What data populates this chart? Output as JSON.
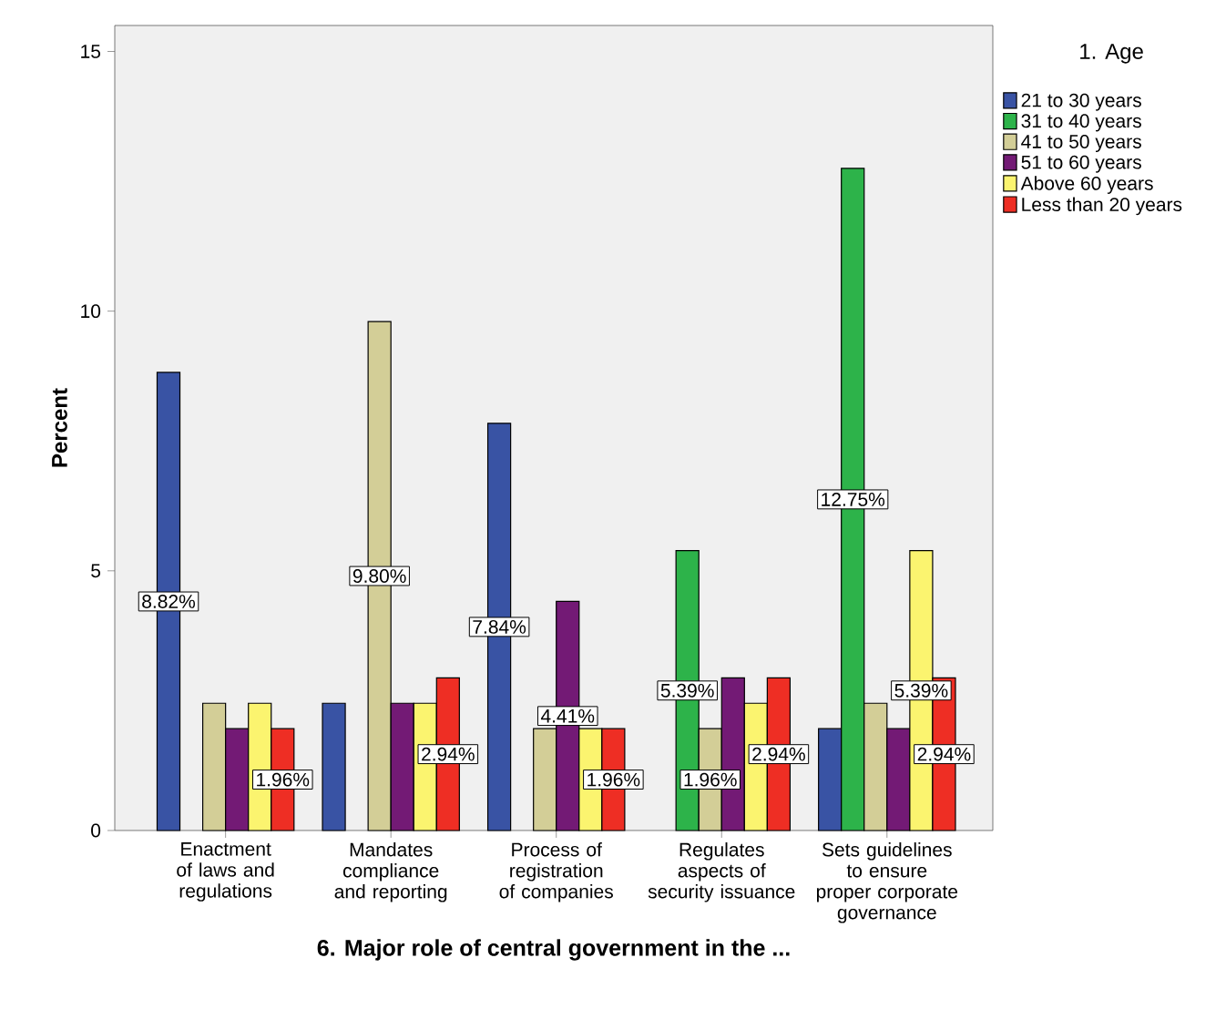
{
  "chart_data": {
    "type": "bar",
    "xlabel": "6. Major role of central government in the ...",
    "ylabel": "Percent",
    "legend_title": "1. Age",
    "categories": [
      "Enactment of laws and regulations",
      "Mandates compliance and reporting",
      "Process of registration of companies",
      "Regulates aspects of security issuance",
      "Sets guidelines to ensure proper corporate governance"
    ],
    "series": [
      {
        "name": "21 to 30 years",
        "color": "#3953a4",
        "values": [
          8.82,
          2.45,
          7.84,
          null,
          1.96
        ],
        "value_labels": [
          "8.82%",
          null,
          "7.84%",
          null,
          null
        ]
      },
      {
        "name": "31 to 40 years",
        "color": "#2db34a",
        "values": [
          null,
          null,
          null,
          5.39,
          12.75
        ],
        "value_labels": [
          null,
          null,
          null,
          "5.39%",
          "12.75%"
        ]
      },
      {
        "name": "41 to 50 years",
        "color": "#d3ce97",
        "values": [
          2.45,
          9.8,
          1.96,
          1.96,
          2.45
        ],
        "value_labels": [
          null,
          "9.80%",
          null,
          "1.96%",
          null
        ]
      },
      {
        "name": "51 to 60 years",
        "color": "#731a75",
        "values": [
          1.96,
          2.45,
          4.41,
          2.94,
          1.96
        ],
        "value_labels": [
          null,
          null,
          "4.41%",
          null,
          null
        ]
      },
      {
        "name": "Above 60 years",
        "color": "#fbf46f",
        "values": [
          2.45,
          2.45,
          1.96,
          2.45,
          5.39
        ],
        "value_labels": [
          null,
          null,
          null,
          null,
          "5.39%"
        ]
      },
      {
        "name": "Less than 20 years",
        "color": "#ee2e24",
        "values": [
          1.96,
          2.94,
          1.96,
          2.94,
          2.94
        ],
        "value_labels": [
          "1.96%",
          "2.94%",
          "1.96%",
          "2.94%",
          "2.94%"
        ]
      }
    ],
    "ylim": [
      0,
      15.5
    ],
    "yticks": [
      0,
      5,
      10,
      15
    ],
    "legend": "top right"
  }
}
